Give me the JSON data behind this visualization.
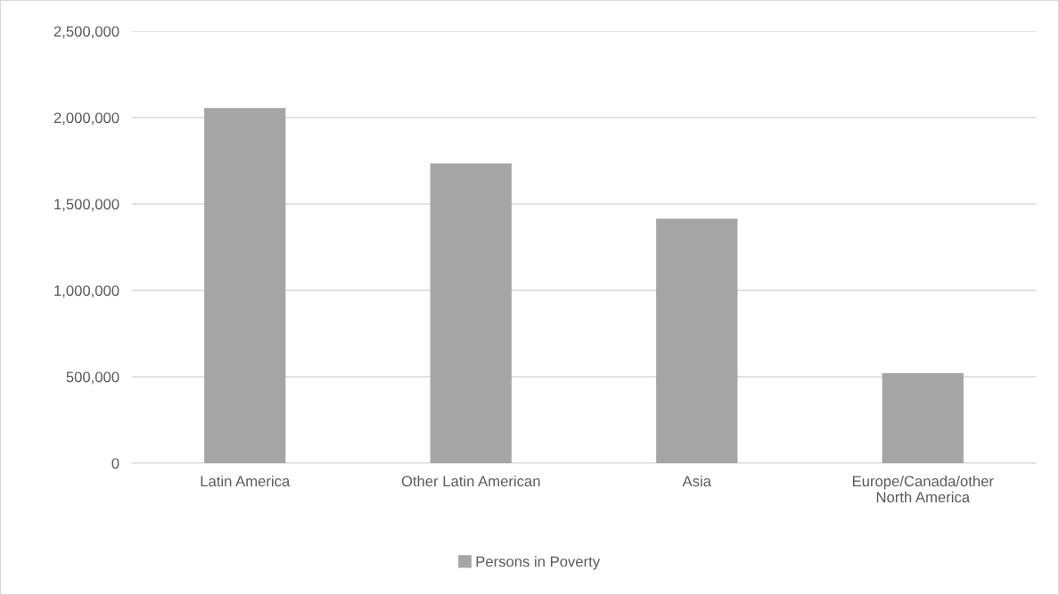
{
  "chart_data": {
    "type": "bar",
    "categories": [
      "Latin America",
      "Other Latin American",
      "Asia",
      "Europe/Canada/other\nNorth America"
    ],
    "series": [
      {
        "name": "Persons in Poverty",
        "color": "#a5a5a5",
        "values": [
          2055000,
          1735000,
          1415000,
          520000
        ]
      }
    ],
    "ylim": [
      0,
      2500000
    ],
    "yticks": [
      {
        "value": 0,
        "label": "0"
      },
      {
        "value": 500000,
        "label": "500,000"
      },
      {
        "value": 1000000,
        "label": "1,000,000"
      },
      {
        "value": 1500000,
        "label": "1,500,000"
      },
      {
        "value": 2000000,
        "label": "2,000,000"
      },
      {
        "value": 2500000,
        "label": "2,500,000"
      }
    ],
    "grid": "y",
    "legend": "bottom"
  }
}
